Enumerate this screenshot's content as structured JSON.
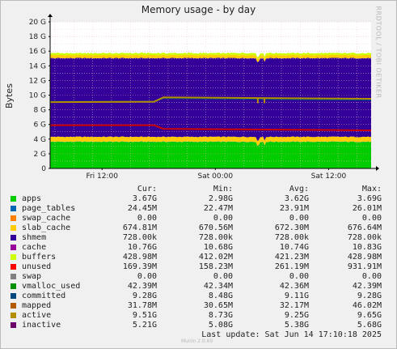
{
  "title": "Memory usage - by day",
  "side_credit": "RRDTOOL / TOBI OETIKER",
  "ylabel": "Bytes",
  "munin_version": "Munin 2.0.69",
  "last_update": "Last update: Sat Jun 14 17:10:18 2025",
  "legend_headers": {
    "cur": "Cur:",
    "min": "Min:",
    "avg": "Avg:",
    "max": "Max:"
  },
  "legend": [
    {
      "name": "apps",
      "color": "#00cc00",
      "cur": "3.67G",
      "min": "2.98G",
      "avg": "3.62G",
      "max": "3.69G"
    },
    {
      "name": "page_tables",
      "color": "#0066b3",
      "cur": "24.45M",
      "min": "22.47M",
      "avg": "23.91M",
      "max": "26.01M"
    },
    {
      "name": "swap_cache",
      "color": "#ff8000",
      "cur": "0.00",
      "min": "0.00",
      "avg": "0.00",
      "max": "0.00"
    },
    {
      "name": "slab_cache",
      "color": "#ffcc00",
      "cur": "674.81M",
      "min": "670.56M",
      "avg": "672.30M",
      "max": "676.64M"
    },
    {
      "name": "shmem",
      "color": "#330099",
      "cur": "728.00k",
      "min": "728.00k",
      "avg": "728.00k",
      "max": "728.00k"
    },
    {
      "name": "cache",
      "color": "#990099",
      "cur": "10.76G",
      "min": "10.68G",
      "avg": "10.74G",
      "max": "10.83G"
    },
    {
      "name": "buffers",
      "color": "#ccff00",
      "cur": "428.98M",
      "min": "412.02M",
      "avg": "421.23M",
      "max": "428.98M"
    },
    {
      "name": "unused",
      "color": "#ff0000",
      "cur": "169.39M",
      "min": "158.23M",
      "avg": "261.19M",
      "max": "931.91M"
    },
    {
      "name": "swap",
      "color": "#808080",
      "cur": "0.00",
      "min": "0.00",
      "avg": "0.00",
      "max": "0.00"
    },
    {
      "name": "vmalloc_used",
      "color": "#008f00",
      "cur": "42.39M",
      "min": "42.34M",
      "avg": "42.36M",
      "max": "42.39M"
    },
    {
      "name": "committed",
      "color": "#00487d",
      "cur": "9.28G",
      "min": "8.48G",
      "avg": "9.11G",
      "max": "9.28G"
    },
    {
      "name": "mapped",
      "color": "#b35a00",
      "cur": "31.78M",
      "min": "30.65M",
      "avg": "32.17M",
      "max": "46.02M"
    },
    {
      "name": "active",
      "color": "#b38f00",
      "cur": "9.51G",
      "min": "8.73G",
      "avg": "9.25G",
      "max": "9.65G"
    },
    {
      "name": "inactive",
      "color": "#6b006b",
      "cur": "5.21G",
      "min": "5.08G",
      "avg": "5.38G",
      "max": "5.68G"
    }
  ],
  "chart_data": {
    "type": "area",
    "title": "Memory usage - by day",
    "ylabel": "Bytes",
    "ylim": [
      0,
      20
    ],
    "y_unit": "G",
    "y_ticks": [
      "0",
      "2 G",
      "4 G",
      "6 G",
      "8 G",
      "10 G",
      "12 G",
      "14 G",
      "16 G",
      "18 G",
      "20 G"
    ],
    "x_ticks": [
      {
        "label": "Fri 12:00",
        "t": 12
      },
      {
        "label": "Sat 00:00",
        "t": 24
      },
      {
        "label": "Sat 12:00",
        "t": 36
      }
    ],
    "x_range_hours": [
      6.5,
      40.5
    ],
    "grid": true,
    "stack": [
      {
        "name": "apps",
        "color": "#00cc00",
        "value": 3.62
      },
      {
        "name": "page_tables",
        "color": "#0066b3",
        "value": 0.024
      },
      {
        "name": "slab_cache",
        "color": "#ffcc00",
        "value": 0.67
      },
      {
        "name": "cache",
        "color": "#330099",
        "value": 10.74
      },
      {
        "name": "buffers",
        "color": "#ffcc00",
        "value": 0.42
      },
      {
        "name": "unused",
        "color": "#ccff00",
        "value": 0.26
      }
    ],
    "lines": [
      {
        "name": "committed",
        "color": "#00487d",
        "points": [
          [
            6.5,
            9.1
          ],
          [
            17.5,
            9.1
          ],
          [
            18.5,
            9.6
          ],
          [
            40.5,
            9.35
          ]
        ]
      },
      {
        "name": "active",
        "color": "#b38f00",
        "points": [
          [
            6.5,
            9.05
          ],
          [
            17.5,
            9.1
          ],
          [
            18.5,
            9.7
          ],
          [
            40.5,
            9.5
          ]
        ]
      },
      {
        "name": "inactive",
        "color": "#cc0000",
        "points": [
          [
            6.5,
            5.9
          ],
          [
            17.5,
            5.9
          ],
          [
            18.5,
            5.4
          ],
          [
            40.5,
            5.2
          ]
        ]
      }
    ],
    "dips_hours": [
      28.5,
      29.2
    ]
  }
}
